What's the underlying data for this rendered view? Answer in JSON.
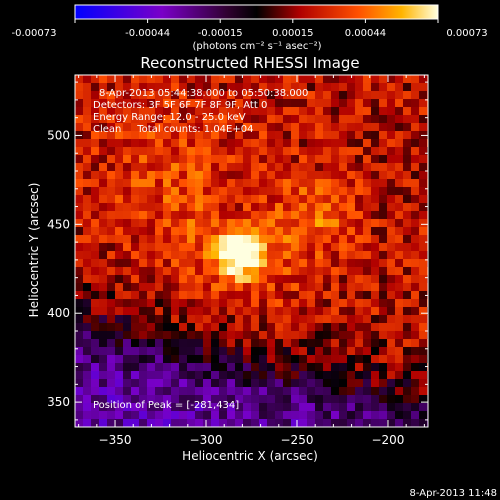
{
  "colorbar": {
    "ticks": [
      "-0.00073",
      "-0.00044",
      "-0.00015",
      "0.00015",
      "0.00044",
      "0.00073"
    ],
    "label": "(photons cm⁻² s⁻¹ asec⁻²)",
    "min": -0.00073,
    "max": 0.00073
  },
  "chart_data": {
    "type": "heatmap",
    "title": "Reconstructed RHESSI Image",
    "xlabel": "Heliocentric X (arcsec)",
    "ylabel": "Heliocentric Y (arcsec)",
    "xlim": [
      -372,
      -178
    ],
    "ylim": [
      336,
      534
    ],
    "xticks": [
      -350,
      -300,
      -250,
      -200
    ],
    "yticks": [
      350,
      400,
      450,
      500
    ],
    "peak_position": [
      -281,
      434
    ],
    "colormap": "red-temperature",
    "info_lines": [
      "8-Apr-2013 05:44:38.000 to 05:50:38.000",
      "Detectors: 3F 5F 6F 7F 8F 9F, Att 0",
      "Energy Range: 12.0 - 25.0 keV",
      "Clean     Total counts: 1.04E+04"
    ],
    "peak_label": "Position of Peak = [-281,434]"
  },
  "footer": {
    "timestamp": "8-Apr-2013 11:48"
  },
  "colors": {
    "background": "#000000",
    "foreground": "#ffffff"
  }
}
